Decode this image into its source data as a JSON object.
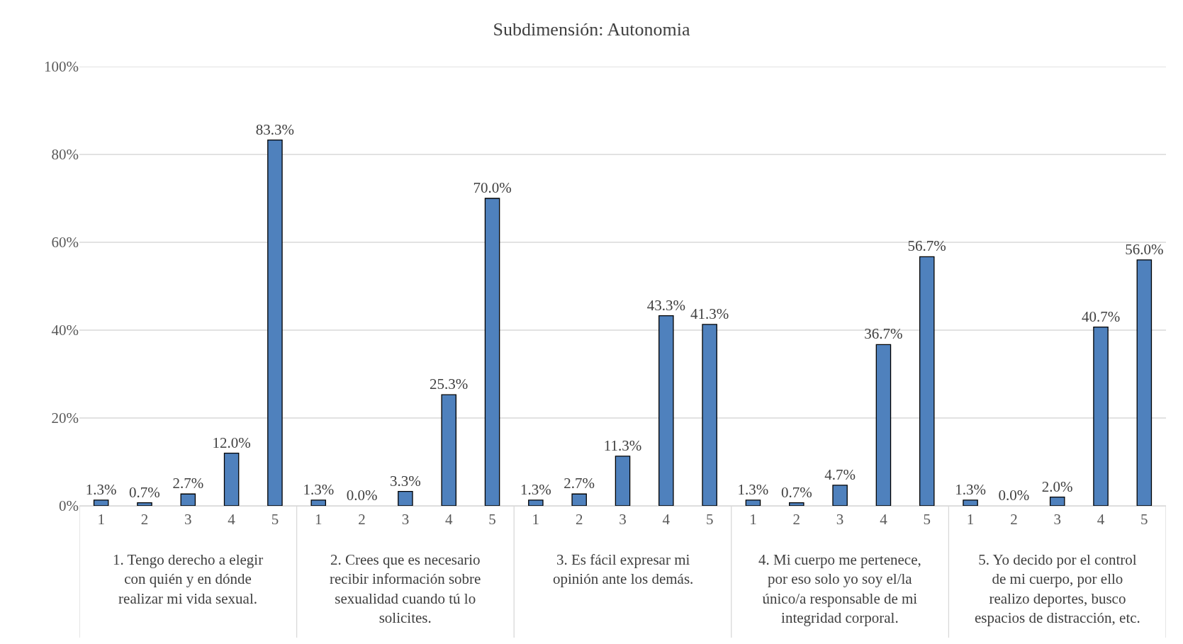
{
  "chart_data": {
    "type": "bar",
    "title": "Subdimensión: Autonomia",
    "categories": [
      "1",
      "2",
      "3",
      "4",
      "5",
      "1",
      "2",
      "3",
      "4",
      "5",
      "1",
      "2",
      "3",
      "4",
      "5",
      "1",
      "2",
      "3",
      "4",
      "5",
      "1",
      "2",
      "3",
      "4",
      "5"
    ],
    "values": [
      1.3,
      0.7,
      2.7,
      12.0,
      83.3,
      1.3,
      0.0,
      3.3,
      25.3,
      70.0,
      1.3,
      2.7,
      11.3,
      43.3,
      41.3,
      1.3,
      0.7,
      4.7,
      36.7,
      56.7,
      1.3,
      0.0,
      2.0,
      40.7,
      56.0
    ],
    "value_labels": [
      "1.3%",
      "0.7%",
      "2.7%",
      "12.0%",
      "83.3%",
      "1.3%",
      "0.0%",
      "3.3%",
      "25.3%",
      "70.0%",
      "1.3%",
      "2.7%",
      "11.3%",
      "43.3%",
      "41.3%",
      "1.3%",
      "0.7%",
      "4.7%",
      "36.7%",
      "56.7%",
      "1.3%",
      "0.0%",
      "2.0%",
      "40.7%",
      "56.0%"
    ],
    "color": "#4f81bd",
    "ylim": [
      0,
      100
    ],
    "yticks": [
      {
        "value": 0,
        "label": "0%"
      },
      {
        "value": 20,
        "label": "20%"
      },
      {
        "value": 40,
        "label": "40%"
      },
      {
        "value": 60,
        "label": "60%"
      },
      {
        "value": 80,
        "label": "80%"
      },
      {
        "value": 100,
        "label": "100%"
      }
    ],
    "grid": "y",
    "legend": false,
    "annotations": [
      "1. Tengo derecho a elegir\ncon quién y en dónde\nrealizar mi vida sexual.",
      "2. Crees que es necesario\nrecibir información sobre\nsexualidad cuando tú lo\nsolicites.",
      "3. Es fácil expresar mi\nopinión ante los demás.",
      "4. Mi cuerpo me pertenece,\npor eso solo yo soy el/la\núnico/a responsable de mi\nintegridad corporal.",
      "5. Yo decido por el control\nde mi cuerpo, por ello\nrealizo deportes, busco\nespacios de distracción, etc."
    ]
  }
}
